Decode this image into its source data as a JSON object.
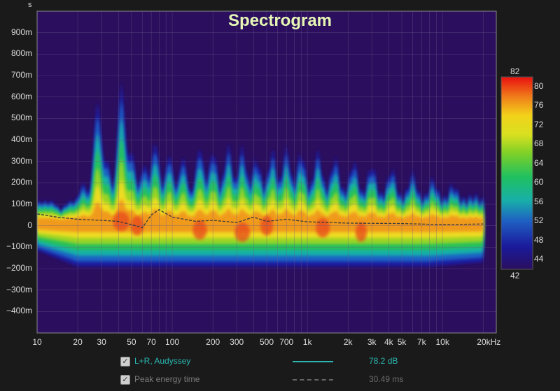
{
  "chart_data": {
    "type": "heatmap",
    "title": "Spectrogram",
    "y_unit": "s",
    "x_scale": "log",
    "x_range_hz": [
      10,
      25000
    ],
    "y_range_s": [
      -0.5,
      1.0
    ],
    "x_ticks": [
      {
        "v": 10,
        "label": "10"
      },
      {
        "v": 20,
        "label": "20"
      },
      {
        "v": 30,
        "label": "30"
      },
      {
        "v": 50,
        "label": "50"
      },
      {
        "v": 70,
        "label": "70"
      },
      {
        "v": 100,
        "label": "100"
      },
      {
        "v": 200,
        "label": "200"
      },
      {
        "v": 300,
        "label": "300"
      },
      {
        "v": 500,
        "label": "500"
      },
      {
        "v": 700,
        "label": "700"
      },
      {
        "v": 1000,
        "label": "1k"
      },
      {
        "v": 2000,
        "label": "2k"
      },
      {
        "v": 3000,
        "label": "3k"
      },
      {
        "v": 4000,
        "label": "4k"
      },
      {
        "v": 5000,
        "label": "5k"
      },
      {
        "v": 7000,
        "label": "7k"
      },
      {
        "v": 10000,
        "label": "10k"
      },
      {
        "v": 20000,
        "label": "20kHz"
      }
    ],
    "y_ticks": [
      {
        "v": 0.9,
        "label": "900m"
      },
      {
        "v": 0.8,
        "label": "800m"
      },
      {
        "v": 0.7,
        "label": "700m"
      },
      {
        "v": 0.6,
        "label": "600m"
      },
      {
        "v": 0.5,
        "label": "500m"
      },
      {
        "v": 0.4,
        "label": "400m"
      },
      {
        "v": 0.3,
        "label": "300m"
      },
      {
        "v": 0.2,
        "label": "200m"
      },
      {
        "v": 0.1,
        "label": "100m"
      },
      {
        "v": 0,
        "label": "0"
      },
      {
        "v": -0.1,
        "label": "−100m"
      },
      {
        "v": -0.2,
        "label": "−200m"
      },
      {
        "v": -0.3,
        "label": "−300m"
      },
      {
        "v": -0.4,
        "label": "−400m"
      }
    ],
    "color_scale": {
      "min": 42,
      "max": 82,
      "top_label": "82",
      "bottom_label": "42",
      "ticks": [
        "80",
        "76",
        "72",
        "68",
        "64",
        "60",
        "56",
        "52",
        "48",
        "44"
      ],
      "tick_values": [
        80,
        76,
        72,
        68,
        64,
        60,
        56,
        52,
        48,
        44
      ]
    },
    "grid": true,
    "peaks": [
      {
        "f": 15,
        "dur": 0.08
      },
      {
        "f": 22,
        "dur": 0.2
      },
      {
        "f": 28,
        "dur": 0.58
      },
      {
        "f": 33,
        "dur": 0.3
      },
      {
        "f": 42,
        "dur": 0.66
      },
      {
        "f": 50,
        "dur": 0.34
      },
      {
        "f": 62,
        "dur": 0.28
      },
      {
        "f": 75,
        "dur": 0.38
      },
      {
        "f": 95,
        "dur": 0.32
      },
      {
        "f": 120,
        "dur": 0.3
      },
      {
        "f": 160,
        "dur": 0.34
      },
      {
        "f": 200,
        "dur": 0.32
      },
      {
        "f": 260,
        "dur": 0.33
      },
      {
        "f": 330,
        "dur": 0.32
      },
      {
        "f": 420,
        "dur": 0.27
      },
      {
        "f": 550,
        "dur": 0.3
      },
      {
        "f": 700,
        "dur": 0.31
      },
      {
        "f": 900,
        "dur": 0.3
      },
      {
        "f": 1200,
        "dur": 0.3
      },
      {
        "f": 1600,
        "dur": 0.28
      },
      {
        "f": 2200,
        "dur": 0.27
      },
      {
        "f": 3000,
        "dur": 0.26
      },
      {
        "f": 4200,
        "dur": 0.25
      },
      {
        "f": 6000,
        "dur": 0.23
      },
      {
        "f": 8500,
        "dur": 0.21
      },
      {
        "f": 12000,
        "dur": 0.19
      },
      {
        "f": 17000,
        "dur": 0.14
      }
    ],
    "peak_energy_time_ms": [
      {
        "f": 10,
        "t": 55
      },
      {
        "f": 14,
        "t": 40
      },
      {
        "f": 20,
        "t": 30
      },
      {
        "f": 30,
        "t": 25
      },
      {
        "f": 40,
        "t": 20
      },
      {
        "f": 50,
        "t": 5
      },
      {
        "f": 60,
        "t": -10
      },
      {
        "f": 70,
        "t": 50
      },
      {
        "f": 80,
        "t": 75
      },
      {
        "f": 100,
        "t": 40
      },
      {
        "f": 150,
        "t": 20
      },
      {
        "f": 200,
        "t": 25
      },
      {
        "f": 300,
        "t": 15
      },
      {
        "f": 400,
        "t": 40
      },
      {
        "f": 500,
        "t": 20
      },
      {
        "f": 700,
        "t": 30
      },
      {
        "f": 1000,
        "t": 18
      },
      {
        "f": 2000,
        "t": 12
      },
      {
        "f": 5000,
        "t": 10
      },
      {
        "f": 10000,
        "t": 5
      },
      {
        "f": 20000,
        "t": 8
      }
    ]
  },
  "legend": {
    "series": [
      {
        "name": "L+R, Audyssey",
        "value": "78.2 dB",
        "color": "#2ab7b0",
        "style": "solid",
        "checked": true
      },
      {
        "name": "Peak energy time",
        "value": "30.49 ms",
        "color": "#777777",
        "style": "dashed",
        "checked": true
      }
    ]
  }
}
